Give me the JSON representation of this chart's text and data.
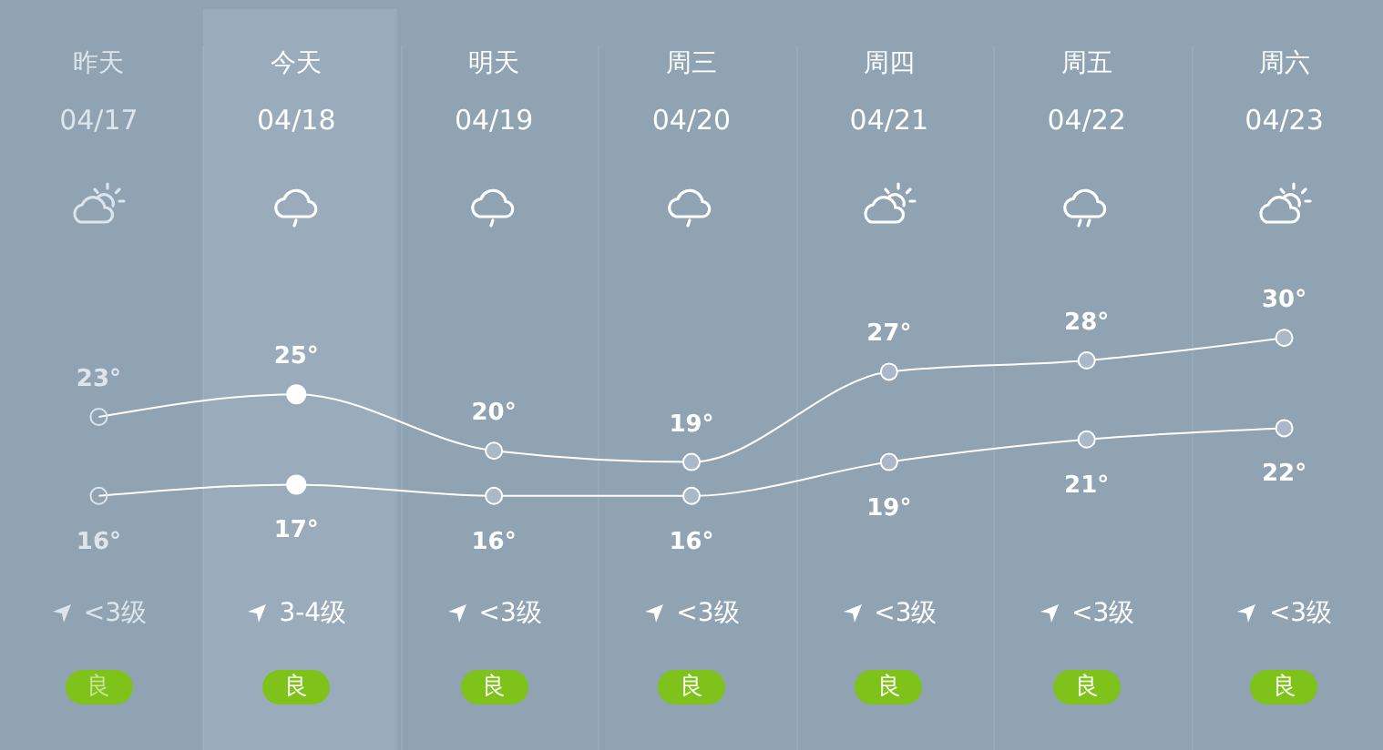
{
  "chart_data": {
    "type": "line",
    "categories": [
      "昨天\n04/17",
      "今天\n04/18",
      "明天\n04/19",
      "周三\n04/20",
      "周四\n04/21",
      "周五\n04/22",
      "周六\n04/23"
    ],
    "series": [
      {
        "color": "#ffffff",
        "values": [
          23,
          25,
          20,
          19,
          27,
          28,
          30
        ],
        "value_labels": [
          "23°",
          "25°",
          "20°",
          "19°",
          "27°",
          "28°",
          "30°"
        ]
      },
      {
        "color": "#ffffff",
        "values": [
          16,
          17,
          16,
          16,
          19,
          21,
          22
        ],
        "value_labels": [
          "16°",
          "17°",
          "16°",
          "16°",
          "19°",
          "21°",
          "22°"
        ]
      }
    ],
    "annotations": [
      "<3级",
      "3-4级",
      "<3级",
      "<3级",
      "<3级",
      "<3级",
      "<3级",
      "良",
      "良",
      "良",
      "良",
      "良",
      "良",
      "良"
    ],
    "bands": [
      {
        "axis": "x",
        "from": "今天\n04/18",
        "to": "今天\n04/18",
        "color": "#9aacbb"
      }
    ],
    "marker": "circle",
    "line_style": "solid"
  }
}
